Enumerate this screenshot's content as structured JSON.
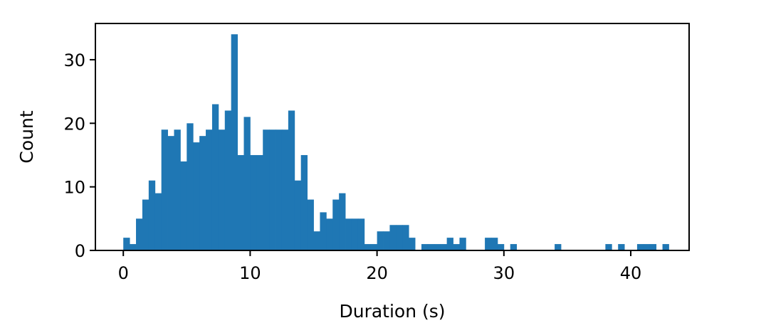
{
  "chart_data": {
    "type": "bar",
    "title": "",
    "xlabel": "Duration (s)",
    "ylabel": "Count",
    "xlim": [
      -2.2,
      44.6
    ],
    "ylim": [
      0,
      35.7
    ],
    "xticks": [
      0,
      10,
      20,
      30,
      40
    ],
    "yticks": [
      0,
      10,
      20,
      30
    ],
    "grid": false,
    "bar_color": "#1f77b4",
    "bin_width": 0.5,
    "bins": [
      {
        "x": 0.0,
        "count": 2
      },
      {
        "x": 0.5,
        "count": 1
      },
      {
        "x": 1.0,
        "count": 5
      },
      {
        "x": 1.5,
        "count": 8
      },
      {
        "x": 2.0,
        "count": 11
      },
      {
        "x": 2.5,
        "count": 9
      },
      {
        "x": 3.0,
        "count": 19
      },
      {
        "x": 3.5,
        "count": 18
      },
      {
        "x": 4.0,
        "count": 19
      },
      {
        "x": 4.5,
        "count": 14
      },
      {
        "x": 5.0,
        "count": 20
      },
      {
        "x": 5.5,
        "count": 17
      },
      {
        "x": 6.0,
        "count": 18
      },
      {
        "x": 6.5,
        "count": 19
      },
      {
        "x": 7.0,
        "count": 23
      },
      {
        "x": 7.5,
        "count": 19
      },
      {
        "x": 8.0,
        "count": 22
      },
      {
        "x": 8.5,
        "count": 34
      },
      {
        "x": 9.0,
        "count": 15
      },
      {
        "x": 9.5,
        "count": 21
      },
      {
        "x": 10.0,
        "count": 15
      },
      {
        "x": 10.5,
        "count": 15
      },
      {
        "x": 11.0,
        "count": 19
      },
      {
        "x": 11.5,
        "count": 19
      },
      {
        "x": 12.0,
        "count": 19
      },
      {
        "x": 12.5,
        "count": 19
      },
      {
        "x": 13.0,
        "count": 22
      },
      {
        "x": 13.5,
        "count": 11
      },
      {
        "x": 14.0,
        "count": 15
      },
      {
        "x": 14.5,
        "count": 8
      },
      {
        "x": 15.0,
        "count": 3
      },
      {
        "x": 15.5,
        "count": 6
      },
      {
        "x": 16.0,
        "count": 5
      },
      {
        "x": 16.5,
        "count": 8
      },
      {
        "x": 17.0,
        "count": 9
      },
      {
        "x": 17.5,
        "count": 5
      },
      {
        "x": 18.0,
        "count": 5
      },
      {
        "x": 18.5,
        "count": 5
      },
      {
        "x": 19.0,
        "count": 1
      },
      {
        "x": 19.5,
        "count": 1
      },
      {
        "x": 20.0,
        "count": 3
      },
      {
        "x": 20.5,
        "count": 3
      },
      {
        "x": 21.0,
        "count": 4
      },
      {
        "x": 21.5,
        "count": 4
      },
      {
        "x": 22.0,
        "count": 4
      },
      {
        "x": 22.5,
        "count": 2
      },
      {
        "x": 23.0,
        "count": 0
      },
      {
        "x": 23.5,
        "count": 1
      },
      {
        "x": 24.0,
        "count": 1
      },
      {
        "x": 24.5,
        "count": 1
      },
      {
        "x": 25.0,
        "count": 1
      },
      {
        "x": 25.5,
        "count": 2
      },
      {
        "x": 26.0,
        "count": 1
      },
      {
        "x": 26.5,
        "count": 2
      },
      {
        "x": 28.5,
        "count": 2
      },
      {
        "x": 29.0,
        "count": 2
      },
      {
        "x": 29.5,
        "count": 1
      },
      {
        "x": 30.5,
        "count": 1
      },
      {
        "x": 34.0,
        "count": 1
      },
      {
        "x": 38.0,
        "count": 1
      },
      {
        "x": 39.0,
        "count": 1
      },
      {
        "x": 40.5,
        "count": 1
      },
      {
        "x": 41.0,
        "count": 1
      },
      {
        "x": 41.5,
        "count": 1
      },
      {
        "x": 42.5,
        "count": 1
      }
    ]
  }
}
